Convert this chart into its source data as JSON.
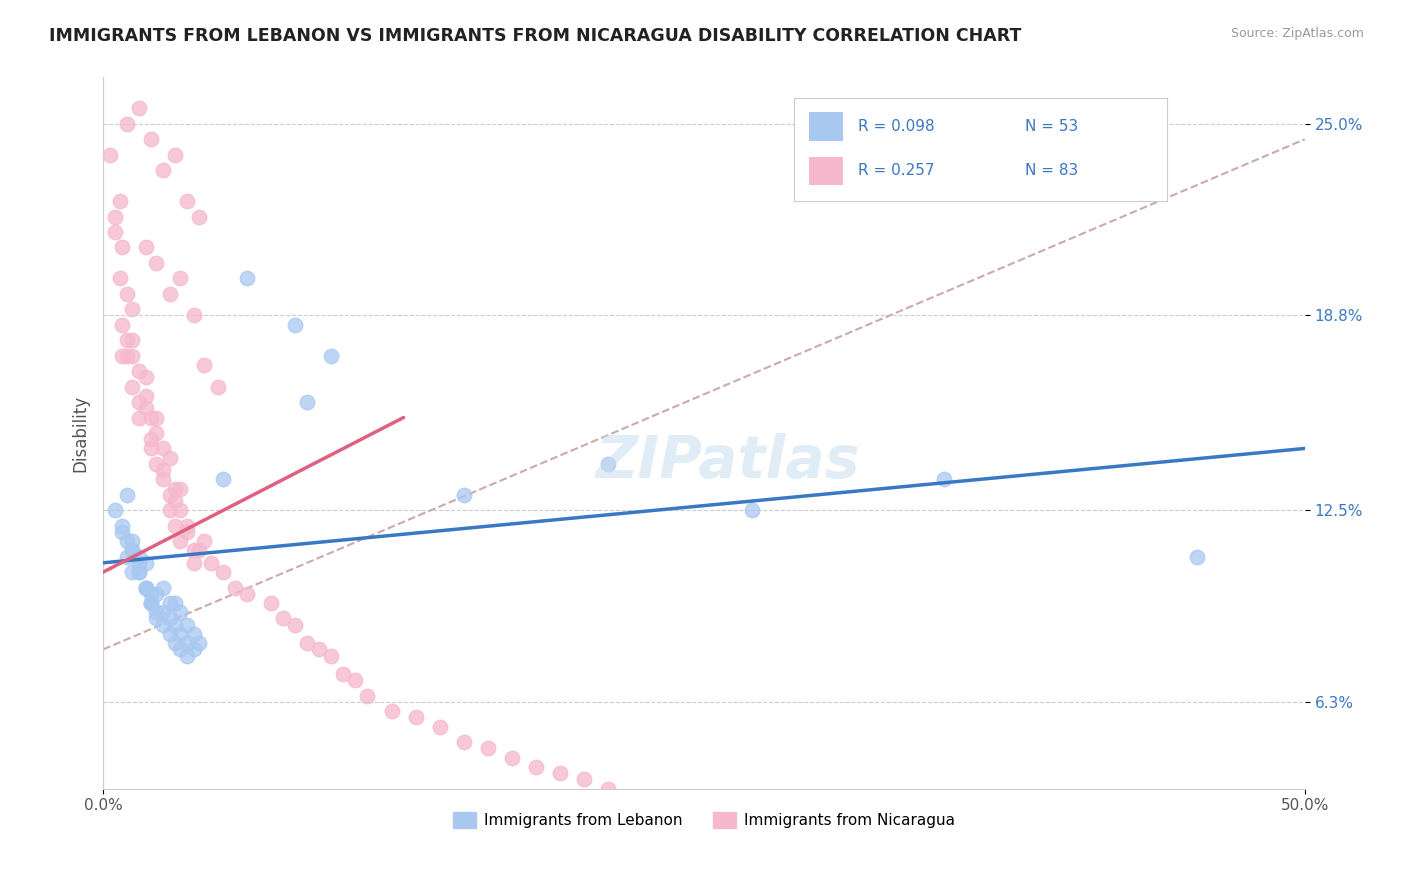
{
  "title": "IMMIGRANTS FROM LEBANON VS IMMIGRANTS FROM NICARAGUA DISABILITY CORRELATION CHART",
  "source": "Source: ZipAtlas.com",
  "ylabel": "Disability",
  "xmin": 0.0,
  "xmax": 0.5,
  "ymin": 0.035,
  "ymax": 0.265,
  "yticks": [
    0.063,
    0.125,
    0.188,
    0.25
  ],
  "ytick_labels": [
    "6.3%",
    "12.5%",
    "18.8%",
    "25.0%"
  ],
  "xtick_right_label": "50.0%",
  "xtick_left_label": "0.0%",
  "r_lebanon": 0.098,
  "n_lebanon": 53,
  "r_nicaragua": 0.257,
  "n_nicaragua": 83,
  "color_lebanon": "#a8c8f0",
  "color_nicaragua": "#f5b8cc",
  "color_lebanon_line": "#3b78c4",
  "color_nicaragua_line": "#e06080",
  "color_dashed": "#ccaaaa",
  "watermark": "ZIPatlas",
  "lebanon_x": [
    0.005,
    0.008,
    0.01,
    0.012,
    0.008,
    0.01,
    0.012,
    0.015,
    0.01,
    0.012,
    0.015,
    0.018,
    0.012,
    0.015,
    0.018,
    0.02,
    0.015,
    0.018,
    0.02,
    0.022,
    0.018,
    0.02,
    0.022,
    0.025,
    0.02,
    0.022,
    0.025,
    0.028,
    0.025,
    0.028,
    0.03,
    0.028,
    0.03,
    0.032,
    0.03,
    0.032,
    0.035,
    0.032,
    0.035,
    0.038,
    0.035,
    0.038,
    0.04,
    0.05,
    0.06,
    0.08,
    0.085,
    0.095,
    0.15,
    0.21,
    0.27,
    0.35,
    0.455
  ],
  "lebanon_y": [
    0.125,
    0.12,
    0.13,
    0.115,
    0.118,
    0.11,
    0.112,
    0.108,
    0.115,
    0.105,
    0.11,
    0.108,
    0.112,
    0.105,
    0.1,
    0.098,
    0.105,
    0.1,
    0.095,
    0.098,
    0.1,
    0.095,
    0.092,
    0.1,
    0.095,
    0.09,
    0.092,
    0.095,
    0.088,
    0.09,
    0.095,
    0.085,
    0.088,
    0.092,
    0.082,
    0.085,
    0.088,
    0.08,
    0.082,
    0.085,
    0.078,
    0.08,
    0.082,
    0.135,
    0.2,
    0.185,
    0.16,
    0.175,
    0.13,
    0.14,
    0.125,
    0.135,
    0.11
  ],
  "nicaragua_x": [
    0.003,
    0.005,
    0.007,
    0.005,
    0.007,
    0.008,
    0.01,
    0.008,
    0.01,
    0.012,
    0.01,
    0.012,
    0.015,
    0.012,
    0.015,
    0.018,
    0.015,
    0.018,
    0.02,
    0.018,
    0.02,
    0.022,
    0.02,
    0.022,
    0.025,
    0.022,
    0.025,
    0.028,
    0.025,
    0.028,
    0.03,
    0.028,
    0.03,
    0.032,
    0.03,
    0.032,
    0.035,
    0.032,
    0.035,
    0.038,
    0.038,
    0.04,
    0.042,
    0.045,
    0.05,
    0.055,
    0.06,
    0.07,
    0.075,
    0.08,
    0.085,
    0.09,
    0.095,
    0.1,
    0.105,
    0.11,
    0.12,
    0.13,
    0.14,
    0.15,
    0.16,
    0.17,
    0.18,
    0.19,
    0.2,
    0.21,
    0.22,
    0.01,
    0.015,
    0.02,
    0.025,
    0.03,
    0.035,
    0.04,
    0.022,
    0.018,
    0.028,
    0.032,
    0.038,
    0.012,
    0.008,
    0.042,
    0.048
  ],
  "nicaragua_y": [
    0.24,
    0.22,
    0.225,
    0.215,
    0.2,
    0.21,
    0.195,
    0.185,
    0.175,
    0.19,
    0.18,
    0.175,
    0.17,
    0.165,
    0.16,
    0.168,
    0.155,
    0.162,
    0.155,
    0.158,
    0.148,
    0.155,
    0.145,
    0.15,
    0.145,
    0.14,
    0.138,
    0.142,
    0.135,
    0.13,
    0.132,
    0.125,
    0.128,
    0.132,
    0.12,
    0.125,
    0.118,
    0.115,
    0.12,
    0.112,
    0.108,
    0.112,
    0.115,
    0.108,
    0.105,
    0.1,
    0.098,
    0.095,
    0.09,
    0.088,
    0.082,
    0.08,
    0.078,
    0.072,
    0.07,
    0.065,
    0.06,
    0.058,
    0.055,
    0.05,
    0.048,
    0.045,
    0.042,
    0.04,
    0.038,
    0.035,
    0.032,
    0.25,
    0.255,
    0.245,
    0.235,
    0.24,
    0.225,
    0.22,
    0.205,
    0.21,
    0.195,
    0.2,
    0.188,
    0.18,
    0.175,
    0.172,
    0.165
  ],
  "lebanon_line_x": [
    0.0,
    0.5
  ],
  "lebanon_line_y": [
    0.108,
    0.145
  ],
  "nicaragua_line_x": [
    0.0,
    0.125
  ],
  "nicaragua_line_y": [
    0.105,
    0.155
  ],
  "dashed_line_x": [
    0.0,
    0.5
  ],
  "dashed_line_y": [
    0.08,
    0.245
  ]
}
